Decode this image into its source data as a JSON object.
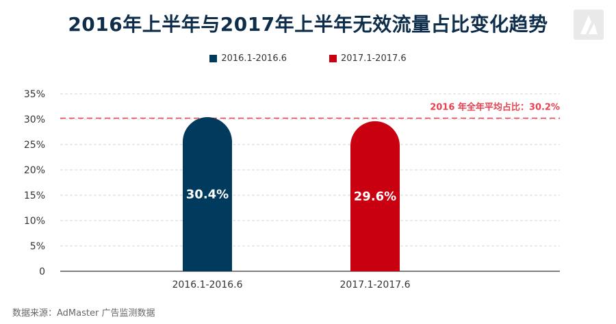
{
  "header": {
    "title": "2016年上半年与2017年上半年无效流量占比变化趋势"
  },
  "legend": {
    "items": [
      {
        "label": "2016.1-2016.6",
        "color": "#003a5d"
      },
      {
        "label": "2017.1-2017.6",
        "color": "#c8000f"
      }
    ]
  },
  "chart_data": {
    "type": "bar",
    "categories": [
      "2016.1-2016.6",
      "2017.1-2017.6"
    ],
    "values": [
      30.4,
      29.6
    ],
    "value_labels": [
      "30.4%",
      "29.6%"
    ],
    "colors": [
      "#003a5d",
      "#c8000f"
    ],
    "ylim": [
      0,
      35
    ],
    "yticks": [
      0,
      5,
      10,
      15,
      20,
      25,
      30,
      35
    ],
    "ytick_labels": [
      "0",
      "5%",
      "10%",
      "15%",
      "20%",
      "25%",
      "30%",
      "35%"
    ],
    "grid": true,
    "reference_line": {
      "value": 30.2,
      "label": "2016 年全年平均占比：30.2%",
      "color": "#e8404f"
    }
  },
  "footer": {
    "source": "数据来源：AdMaster 广告监测数据"
  }
}
